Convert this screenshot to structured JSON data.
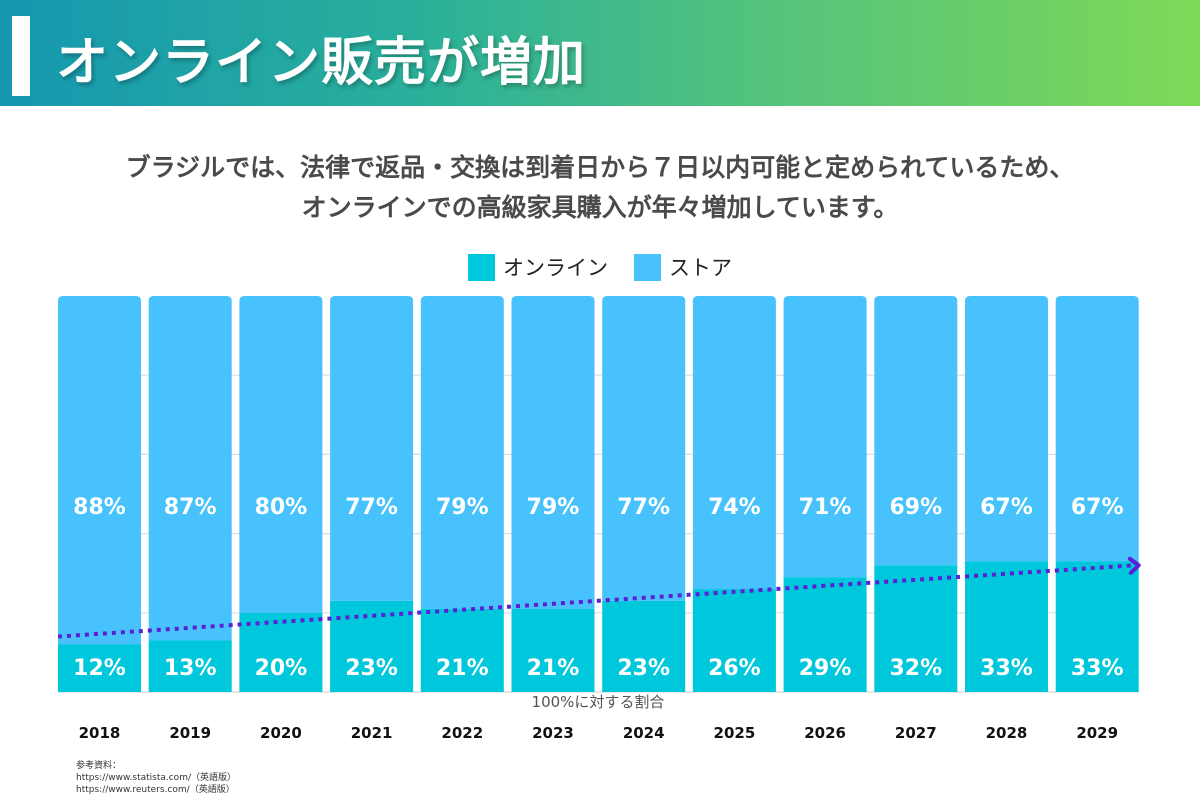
{
  "header": {
    "title": "オンライン販売が増加"
  },
  "subtitle": {
    "line1": "ブラジルでは、法律で返品・交換は到着日から７日以内可能と定められているため、",
    "line2": "オンラインでの高級家具購入が年々増加しています。"
  },
  "colors": {
    "online": "#00c8dc",
    "store": "#48c2fc",
    "trend": "#5b1fd6",
    "gridline": "#dddddd",
    "label": "#ffffff",
    "tick": "#111111"
  },
  "chart_data": {
    "type": "bar",
    "stacked": true,
    "title": "",
    "xlabel": "100%に対する割合",
    "ylabel": "",
    "ylim": [
      0,
      100
    ],
    "grid": true,
    "legend_position": "top-center",
    "categories": [
      "2018",
      "2019",
      "2020",
      "2021",
      "2022",
      "2023",
      "2024",
      "2025",
      "2026",
      "2027",
      "2028",
      "2029"
    ],
    "series": [
      {
        "name": "オンライン",
        "values": [
          12,
          13,
          20,
          23,
          21,
          21,
          23,
          26,
          29,
          32,
          33,
          33
        ],
        "labels": [
          "12%",
          "13%",
          "20%",
          "23%",
          "21%",
          "21%",
          "23%",
          "26%",
          "29%",
          "32%",
          "33%",
          "33%"
        ]
      },
      {
        "name": "ストア",
        "values": [
          88,
          87,
          80,
          77,
          79,
          79,
          77,
          74,
          71,
          69,
          67,
          67
        ],
        "labels": [
          "88%",
          "87%",
          "80%",
          "77%",
          "79%",
          "79%",
          "77%",
          "74%",
          "71%",
          "69%",
          "67%",
          "67%"
        ]
      }
    ],
    "trendline": {
      "style": "dotted-arrow",
      "start_value": 14,
      "end_value": 32
    }
  },
  "sources": {
    "heading": "参考資料：",
    "items": [
      "https://www.statista.com/（英語版）",
      "https://www.reuters.com/（英語版）"
    ]
  }
}
